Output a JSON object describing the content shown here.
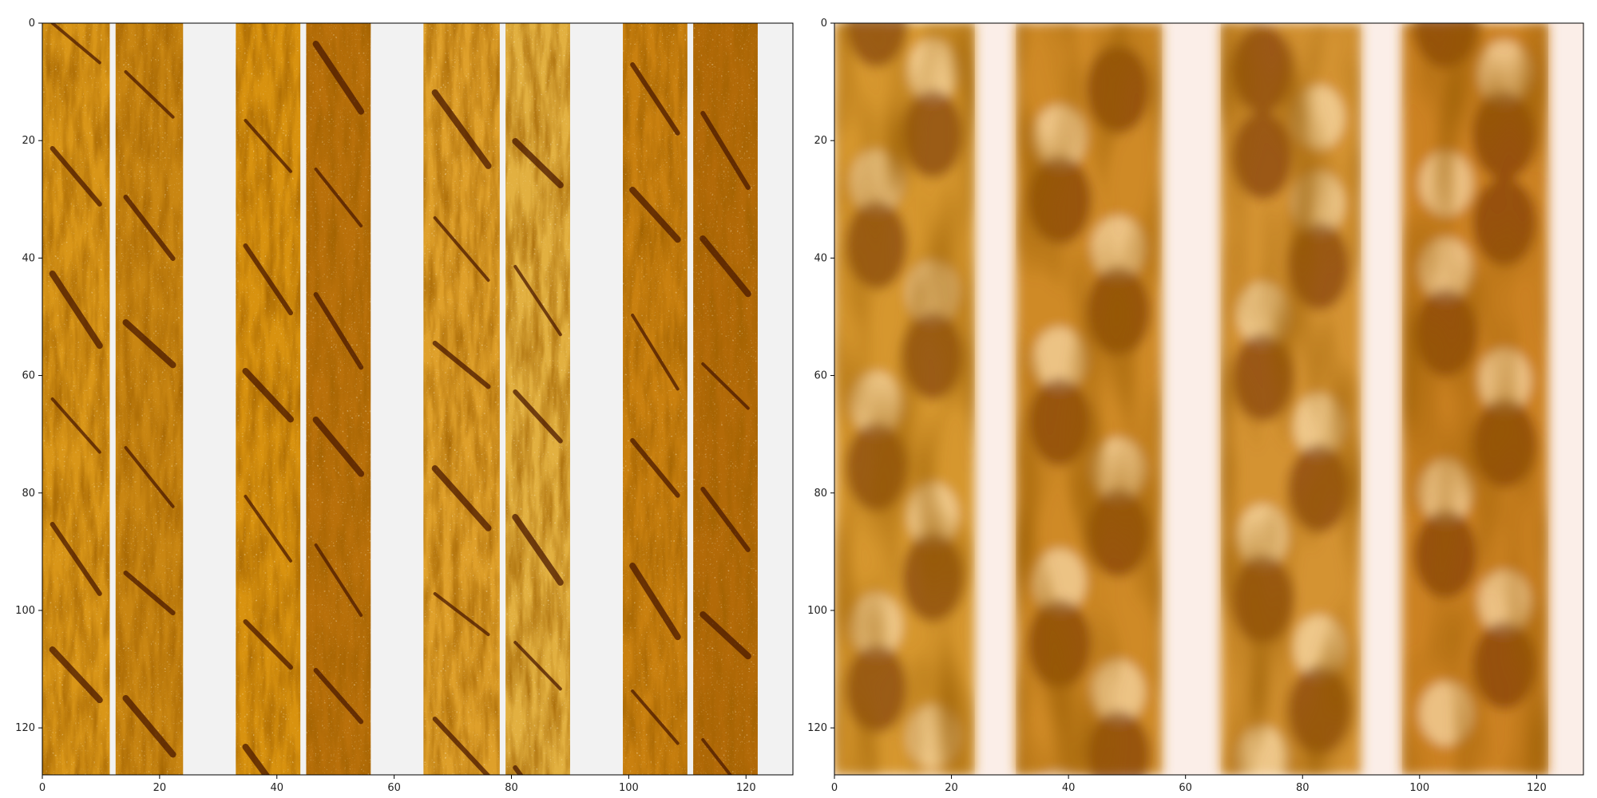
{
  "figure": {
    "panels": [
      {
        "id": "left",
        "description_kind": "sharp",
        "xticks": [
          "0",
          "20",
          "40",
          "60",
          "80",
          "100",
          "120"
        ],
        "yticks": [
          "0",
          "20",
          "40",
          "60",
          "80",
          "100",
          "120"
        ],
        "xlim": [
          0,
          128
        ],
        "ylim": [
          128,
          0
        ],
        "gap_color": "#f2f2f2",
        "bands": [
          {
            "x0": 0,
            "x1": 11.5,
            "tone": "#d99618"
          },
          {
            "x0": 12.5,
            "x1": 24,
            "tone": "#c98612"
          },
          {
            "x0": 33,
            "x1": 44,
            "tone": "#d8920f"
          },
          {
            "x0": 45,
            "x1": 56,
            "tone": "#b9700a"
          },
          {
            "x0": 65,
            "x1": 78,
            "tone": "#dfa02a"
          },
          {
            "x0": 79,
            "x1": 90,
            "tone": "#e2b040"
          },
          {
            "x0": 99,
            "x1": 110,
            "tone": "#c9800f"
          },
          {
            "x0": 111,
            "x1": 122,
            "tone": "#b36a08"
          }
        ]
      },
      {
        "id": "right",
        "description_kind": "blurred",
        "xticks": [
          "0",
          "20",
          "40",
          "60",
          "80",
          "100",
          "120"
        ],
        "yticks": [
          "0",
          "20",
          "40",
          "60",
          "80",
          "100",
          "120"
        ],
        "xlim": [
          0,
          128
        ],
        "ylim": [
          128,
          0
        ],
        "gap_color": "#fbeee8",
        "bands": [
          {
            "x0": 0,
            "x1": 24,
            "tone": "#d6972f"
          },
          {
            "x0": 31,
            "x1": 56,
            "tone": "#cf8a25"
          },
          {
            "x0": 66,
            "x1": 90,
            "tone": "#d49331"
          },
          {
            "x0": 97,
            "x1": 122,
            "tone": "#cc8220"
          }
        ]
      }
    ]
  }
}
